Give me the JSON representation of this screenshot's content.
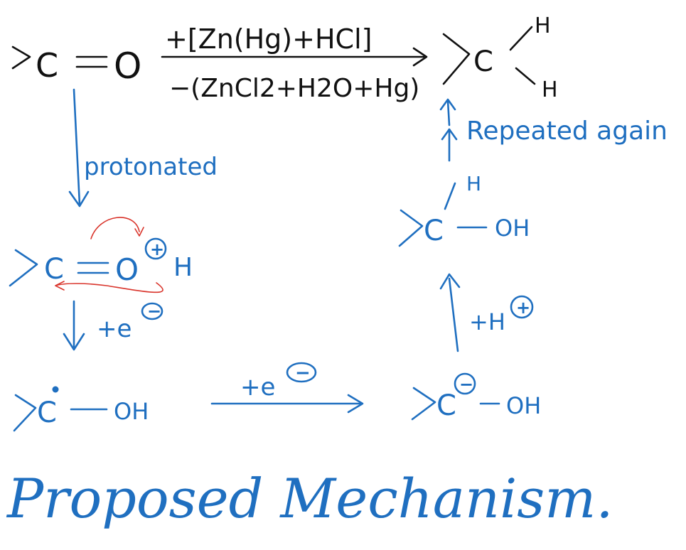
{
  "colors": {
    "ink_blue": "#1f6fc0",
    "ink_black": "#111111",
    "ink_red": "#d9342b"
  },
  "reaction": {
    "reactant_carbon": "C",
    "reactant_oxygen": "O",
    "reagents_above": "+[Zn(Hg)+HCl]",
    "byproducts_below": "−(ZnCl2+H2O+Hg)",
    "product_carbon": "C",
    "product_h_top": "H",
    "product_h_bottom": "H"
  },
  "steps": {
    "protonated_label": "protonated",
    "repeated_label": "Repeated again",
    "oxonium_carbon": "C",
    "oxonium_oxygen": "O",
    "oxonium_h": "H",
    "plus_sign": "+",
    "minus_sign": "−",
    "plus_electron_label": "+e",
    "radical_carbon": "C",
    "radical_oh": "OH",
    "plus_electron_label_2": "+e",
    "carbanion_carbon": "C",
    "carbanion_oh": "OH",
    "plus_proton_label": "+H",
    "alcohol_carbon": "C",
    "alcohol_oh": "OH",
    "alcohol_h": "H"
  },
  "caption": "Proposed Mechanism."
}
